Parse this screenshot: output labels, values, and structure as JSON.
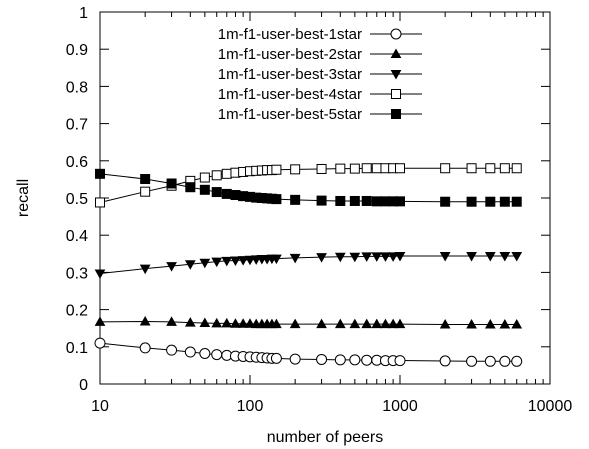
{
  "chart_data": {
    "type": "line",
    "xlabel": "number of peers",
    "ylabel": "recall",
    "xscale": "log",
    "xlim": [
      10,
      10000
    ],
    "ylim": [
      0,
      1
    ],
    "xticks": [
      {
        "value": 10,
        "label": "10"
      },
      {
        "value": 100,
        "label": "100"
      },
      {
        "value": 1000,
        "label": "1000"
      },
      {
        "value": 10000,
        "label": "10000"
      }
    ],
    "yticks": [
      {
        "value": 0,
        "label": "0"
      },
      {
        "value": 0.1,
        "label": "0.1"
      },
      {
        "value": 0.2,
        "label": "0.2"
      },
      {
        "value": 0.3,
        "label": "0.3"
      },
      {
        "value": 0.4,
        "label": "0.4"
      },
      {
        "value": 0.5,
        "label": "0.5"
      },
      {
        "value": 0.6,
        "label": "0.6"
      },
      {
        "value": 0.7,
        "label": "0.7"
      },
      {
        "value": 0.8,
        "label": "0.8"
      },
      {
        "value": 0.9,
        "label": "0.9"
      },
      {
        "value": 1,
        "label": "1"
      }
    ],
    "grid": false,
    "legend_position": "top-right",
    "x": [
      10,
      20,
      30,
      40,
      50,
      60,
      70,
      80,
      90,
      100,
      110,
      120,
      130,
      140,
      150,
      200,
      300,
      400,
      500,
      600,
      700,
      800,
      900,
      1000,
      2000,
      3000,
      4000,
      5000,
      6000
    ],
    "series": [
      {
        "name": "1m-f1-user-best-1star",
        "marker": "circle-open",
        "values": [
          0.11,
          0.097,
          0.091,
          0.086,
          0.082,
          0.079,
          0.077,
          0.075,
          0.074,
          0.073,
          0.072,
          0.071,
          0.07,
          0.069,
          0.069,
          0.067,
          0.066,
          0.065,
          0.065,
          0.064,
          0.064,
          0.063,
          0.063,
          0.063,
          0.062,
          0.061,
          0.061,
          0.061,
          0.061
        ]
      },
      {
        "name": "1m-f1-user-best-2star",
        "marker": "triangle-up-filled",
        "values": [
          0.167,
          0.168,
          0.167,
          0.165,
          0.164,
          0.163,
          0.163,
          0.162,
          0.162,
          0.162,
          0.161,
          0.161,
          0.161,
          0.161,
          0.161,
          0.161,
          0.161,
          0.161,
          0.161,
          0.161,
          0.161,
          0.161,
          0.161,
          0.161,
          0.16,
          0.16,
          0.16,
          0.16,
          0.16
        ]
      },
      {
        "name": "1m-f1-user-best-3star",
        "marker": "triangle-down-filled",
        "values": [
          0.297,
          0.31,
          0.317,
          0.322,
          0.326,
          0.329,
          0.331,
          0.332,
          0.333,
          0.334,
          0.335,
          0.336,
          0.336,
          0.337,
          0.337,
          0.339,
          0.341,
          0.342,
          0.342,
          0.343,
          0.343,
          0.343,
          0.343,
          0.344,
          0.344,
          0.344,
          0.344,
          0.344,
          0.344
        ]
      },
      {
        "name": "1m-f1-user-best-4star",
        "marker": "square-open",
        "values": [
          0.488,
          0.517,
          0.533,
          0.546,
          0.555,
          0.561,
          0.565,
          0.568,
          0.57,
          0.572,
          0.573,
          0.574,
          0.575,
          0.575,
          0.576,
          0.577,
          0.578,
          0.579,
          0.579,
          0.58,
          0.58,
          0.58,
          0.58,
          0.58,
          0.58,
          0.58,
          0.58,
          0.58,
          0.58
        ]
      },
      {
        "name": "1m-f1-user-best-5star",
        "marker": "square-filled",
        "values": [
          0.565,
          0.551,
          0.539,
          0.529,
          0.522,
          0.516,
          0.511,
          0.508,
          0.505,
          0.503,
          0.501,
          0.5,
          0.499,
          0.498,
          0.497,
          0.495,
          0.493,
          0.492,
          0.492,
          0.492,
          0.491,
          0.491,
          0.491,
          0.491,
          0.49,
          0.49,
          0.49,
          0.49,
          0.49
        ]
      }
    ]
  }
}
